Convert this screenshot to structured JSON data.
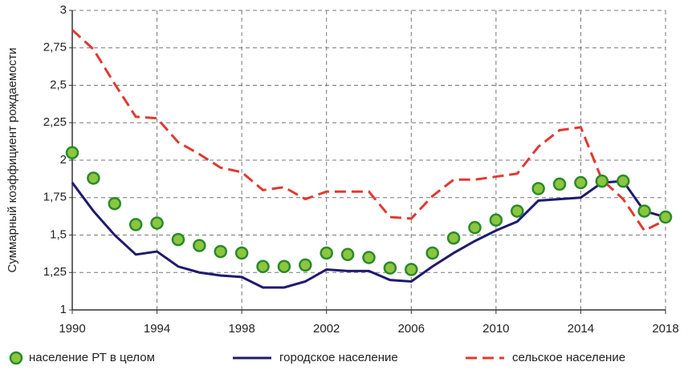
{
  "chart_data": {
    "type": "line",
    "y_label": "Суммарный коэффициент рождаемости",
    "x": [
      1990,
      1991,
      1992,
      1993,
      1994,
      1995,
      1996,
      1997,
      1998,
      1999,
      2000,
      2001,
      2002,
      2003,
      2004,
      2005,
      2006,
      2007,
      2008,
      2009,
      2010,
      2011,
      2012,
      2013,
      2014,
      2015,
      2016,
      2017,
      2018
    ],
    "series": [
      {
        "name": "население РТ в целом",
        "color": "#8cc63f",
        "edgecolor": "#2a8a2a",
        "style": "marker",
        "values": [
          2.05,
          1.88,
          1.71,
          1.57,
          1.58,
          1.47,
          1.43,
          1.39,
          1.38,
          1.29,
          1.29,
          1.3,
          1.38,
          1.37,
          1.35,
          1.28,
          1.27,
          1.38,
          1.48,
          1.55,
          1.6,
          1.66,
          1.81,
          1.84,
          1.85,
          1.86,
          1.86,
          1.66,
          1.62
        ]
      },
      {
        "name": "городское население",
        "color": "#201a6e",
        "style": "solid",
        "values": [
          1.85,
          1.66,
          1.5,
          1.37,
          1.39,
          1.29,
          1.25,
          1.23,
          1.22,
          1.15,
          1.15,
          1.19,
          1.27,
          1.26,
          1.26,
          1.2,
          1.19,
          1.29,
          1.38,
          1.46,
          1.53,
          1.59,
          1.73,
          1.74,
          1.75,
          1.85,
          1.86,
          1.66,
          1.62
        ]
      },
      {
        "name": "сельское население",
        "color": "#e03a30",
        "style": "dashed",
        "values": [
          2.87,
          2.74,
          2.51,
          2.29,
          2.28,
          2.12,
          2.04,
          1.95,
          1.92,
          1.8,
          1.82,
          1.74,
          1.79,
          1.79,
          1.79,
          1.62,
          1.61,
          1.76,
          1.87,
          1.87,
          1.89,
          1.91,
          2.09,
          2.2,
          2.22,
          1.87,
          1.74,
          1.53,
          1.6
        ]
      }
    ],
    "xlim": [
      1990,
      2018
    ],
    "xticks": [
      1990,
      1994,
      1998,
      2002,
      2006,
      2010,
      2014,
      2018
    ],
    "ylim": [
      1,
      3
    ],
    "yticks": [
      1,
      {
        "value": 1.25,
        "label": "1,25"
      },
      {
        "value": 1.5,
        "label": "1,5"
      },
      {
        "value": 1.75,
        "label": "1,75"
      },
      2,
      {
        "value": 2.25,
        "label": "2,25"
      },
      {
        "value": 2.5,
        "label": "2,5"
      },
      {
        "value": 2.75,
        "label": "2,75"
      },
      3
    ],
    "grid": true,
    "legend": "bottom"
  }
}
